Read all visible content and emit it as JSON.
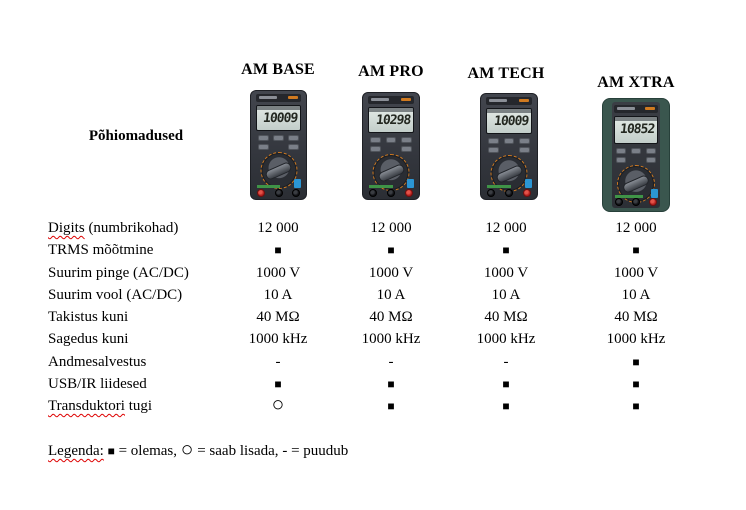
{
  "page": {
    "background": "#ffffff",
    "text_color": "#000000",
    "spellcheck_underline_color": "#dd0000"
  },
  "features_header": "Põhiomadused",
  "products": [
    {
      "name": "AM BASE",
      "display": "10009",
      "body_color": "#383b42"
    },
    {
      "name": "AM PRO",
      "display": "10298",
      "body_color": "#383b42"
    },
    {
      "name": "AM TECH",
      "display": "10009",
      "body_color": "#383b42"
    },
    {
      "name": "AM XTRA",
      "display": "10852",
      "body_color": "#383b42",
      "holster_color": "#3a564e"
    }
  ],
  "device_colors": {
    "lcd": "#ccd5d1",
    "dial_ticks_orange": "#d07a20",
    "sticker_blue": "#2b96d4",
    "button_red": "#b5211f",
    "brand_green": "#3f9447"
  },
  "table": {
    "rows": [
      {
        "label": "Digits (numbrikohad)",
        "squiggle": "Digits",
        "values": [
          "12 000",
          "12 000",
          "12 000",
          "12 000"
        ]
      },
      {
        "label": "TRMS mõõtmine",
        "values": [
          "■",
          "■",
          "■",
          "■"
        ]
      },
      {
        "label": "Suurim pinge (AC/DC)",
        "values": [
          "1000 V",
          "1000 V",
          "1000 V",
          "1000 V"
        ]
      },
      {
        "label": "Suurim vool (AC/DC)",
        "values": [
          "10 A",
          "10 A",
          "10 A",
          "10 A"
        ]
      },
      {
        "label": "Takistus kuni",
        "values": [
          "40 MΩ",
          "40 MΩ",
          "40 MΩ",
          "40 MΩ"
        ]
      },
      {
        "label": "Sagedus kuni",
        "values": [
          "1000 kHz",
          "1000 kHz",
          "1000 kHz",
          "1000 kHz"
        ]
      },
      {
        "label": "Andmesalvestus",
        "values": [
          "-",
          "-",
          "-",
          "■"
        ]
      },
      {
        "label": "USB/IR liidesed",
        "values": [
          "■",
          "■",
          "■",
          "■"
        ]
      },
      {
        "label": "Transduktori tugi",
        "squiggle": "Transduktori",
        "values": [
          "○",
          "■",
          "■",
          "■"
        ]
      }
    ]
  },
  "legend": {
    "label": "Legenda:",
    "items": [
      {
        "symbol": "■",
        "text": "= olemas"
      },
      {
        "symbol": "○",
        "text": "= saab lisada"
      },
      {
        "symbol": "-",
        "text": "= puudub"
      }
    ]
  }
}
